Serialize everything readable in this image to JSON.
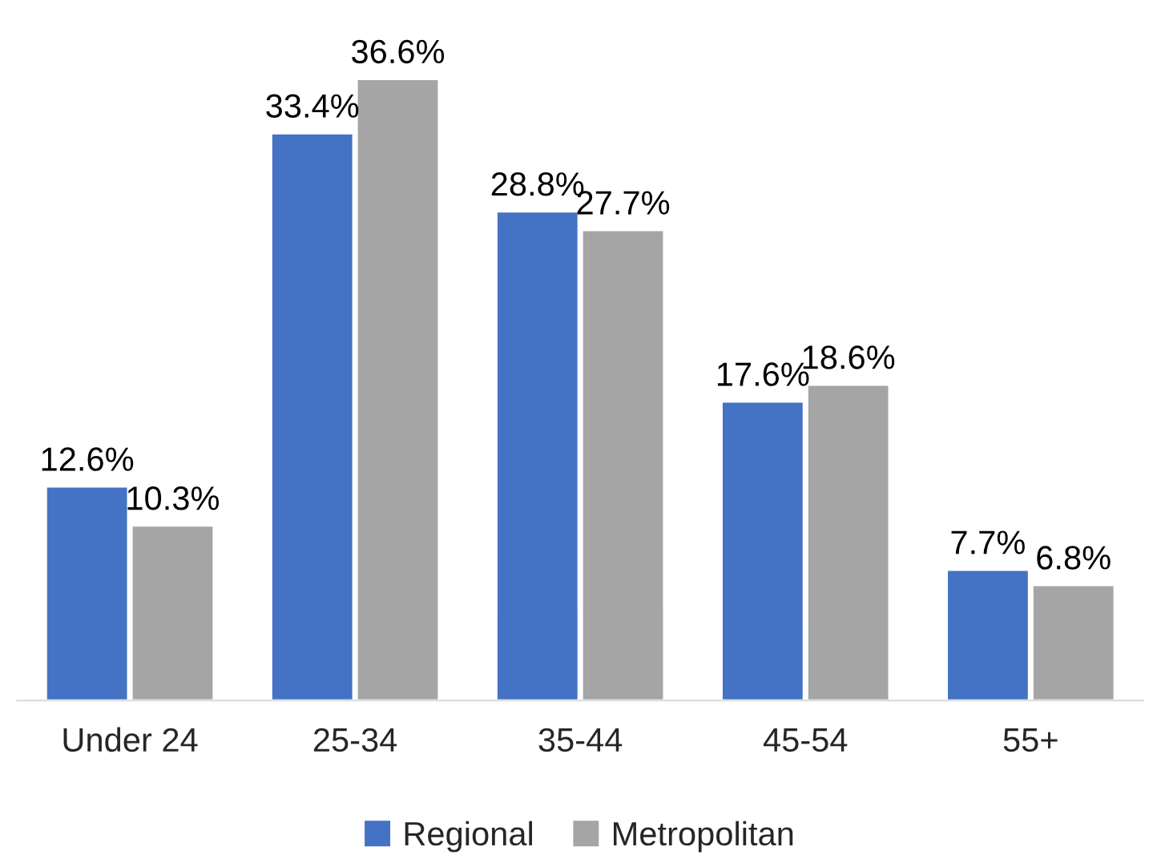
{
  "chart_data": {
    "type": "bar",
    "categories": [
      "Under 24",
      "25-34",
      "35-44",
      "45-54",
      "55+"
    ],
    "series": [
      {
        "name": "Regional",
        "color": "#4472c4",
        "values": [
          12.6,
          33.4,
          28.8,
          17.6,
          7.7
        ],
        "value_labels": [
          "12.6%",
          "33.4%",
          "28.8%",
          "17.6%",
          "7.7%"
        ]
      },
      {
        "name": "Metropolitan",
        "color": "#a5a5a5",
        "values": [
          10.3,
          36.6,
          27.7,
          18.6,
          6.8
        ],
        "value_labels": [
          "10.3%",
          "36.6%",
          "27.7%",
          "18.6%",
          "6.8%"
        ]
      }
    ],
    "legend": "bottom",
    "grid": false
  }
}
